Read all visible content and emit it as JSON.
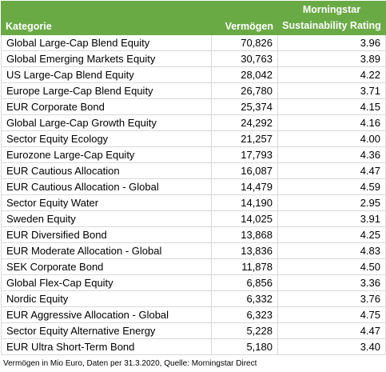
{
  "header": {
    "category": "Kategorie",
    "assets": "Vermögen",
    "rating_line1": "Morningstar",
    "rating_line2": "Sustainability Rating"
  },
  "rows": [
    {
      "category": "Global Large-Cap Blend Equity",
      "assets": "70,826",
      "rating": "3.96"
    },
    {
      "category": "Global Emerging Markets Equity",
      "assets": "30,763",
      "rating": "3.89"
    },
    {
      "category": "US Large-Cap Blend Equity",
      "assets": "28,042",
      "rating": "4.22"
    },
    {
      "category": "Europe Large-Cap Blend Equity",
      "assets": "26,780",
      "rating": "3.71"
    },
    {
      "category": "EUR Corporate Bond",
      "assets": "25,374",
      "rating": "4.15"
    },
    {
      "category": "Global Large-Cap Growth Equity",
      "assets": "24,292",
      "rating": "4.16"
    },
    {
      "category": "Sector Equity Ecology",
      "assets": "21,257",
      "rating": "4.00"
    },
    {
      "category": "Eurozone Large-Cap Equity",
      "assets": "17,793",
      "rating": "4.36"
    },
    {
      "category": "EUR Cautious Allocation",
      "assets": "16,087",
      "rating": "4.47"
    },
    {
      "category": "EUR Cautious Allocation - Global",
      "assets": "14,479",
      "rating": "4.59"
    },
    {
      "category": "Sector Equity Water",
      "assets": "14,190",
      "rating": "2.95"
    },
    {
      "category": "Sweden Equity",
      "assets": "14,025",
      "rating": "3.91"
    },
    {
      "category": "EUR Diversified Bond",
      "assets": "13,868",
      "rating": "4.25"
    },
    {
      "category": "EUR Moderate Allocation - Global",
      "assets": "13,836",
      "rating": "4.83"
    },
    {
      "category": "SEK Corporate Bond",
      "assets": "11,878",
      "rating": "4.50"
    },
    {
      "category": "Global Flex-Cap Equity",
      "assets": "6,856",
      "rating": "3.36"
    },
    {
      "category": "Nordic Equity",
      "assets": "6,332",
      "rating": "3.76"
    },
    {
      "category": "EUR Aggressive Allocation - Global",
      "assets": "6,323",
      "rating": "4.75"
    },
    {
      "category": "Sector Equity Alternative Energy",
      "assets": "5,228",
      "rating": "4.47"
    },
    {
      "category": "EUR Ultra Short-Term Bond",
      "assets": "5,180",
      "rating": "3.40"
    }
  ],
  "footnote": "Vermögen in Mio Euro, Daten per 31.3.2020, Quelle: Morningstar Direct",
  "colors": {
    "header_background": "#6aaa45",
    "header_text": "#ffffff",
    "grid_lines": "#d9d9d9"
  }
}
